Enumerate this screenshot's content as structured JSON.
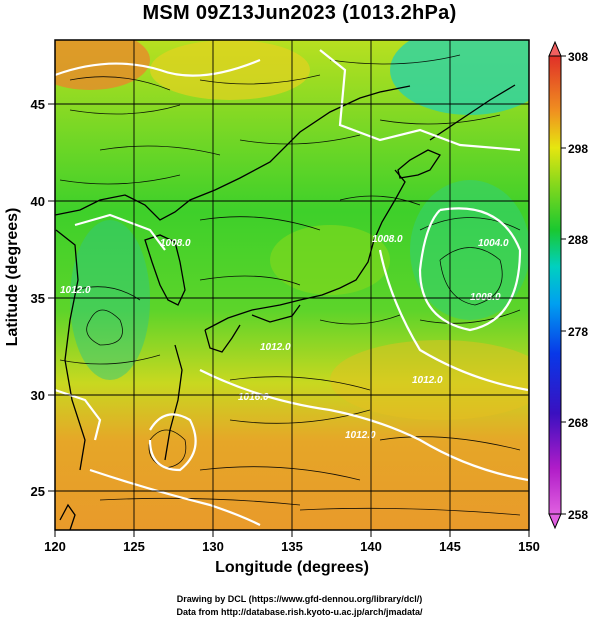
{
  "title": "MSM 09Z13Jun2023 (1013.2hPa)",
  "xaxis": {
    "label": "Longitude (degrees)",
    "ticks": [
      "120",
      "125",
      "130",
      "135",
      "140",
      "145",
      "150"
    ]
  },
  "yaxis": {
    "label": "Latitude  (degrees)",
    "ticks": [
      "25",
      "30",
      "35",
      "40",
      "45"
    ]
  },
  "colorbar": {
    "ticks": [
      "308",
      "298",
      "288",
      "278",
      "268",
      "258"
    ]
  },
  "contours": {
    "labels": [
      "1008.0",
      "1008.0",
      "1012.0",
      "1012.0",
      "1016.0",
      "1012.0",
      "1004.0",
      "1008.0",
      "1012.0"
    ]
  },
  "credits": [
    "Drawing by DCL (https://www.gfd-dennou.org/library/dcl/)",
    "Data from http://database.rish.kyoto-u.ac.jp/arch/jmadata/"
  ],
  "chart_data": {
    "type": "heatmap",
    "title": "MSM 09Z13Jun2023 (1013.2hPa)",
    "xlabel": "Longitude (degrees)",
    "ylabel": "Latitude  (degrees)",
    "xlim": [
      120,
      150
    ],
    "ylim": [
      22.5,
      48
    ],
    "x_ticks": [
      120,
      125,
      130,
      135,
      140,
      145,
      150
    ],
    "y_ticks": [
      25,
      30,
      35,
      40,
      45
    ],
    "color_range": [
      258,
      308
    ],
    "colorbar_ticks": [
      308,
      298,
      288,
      278,
      268,
      258
    ],
    "colormap": [
      "#e0a0d8",
      "#b01cc8",
      "#3a10c0",
      "#0838e8",
      "#00a0f0",
      "#00d0c0",
      "#1ac830",
      "#86d81c",
      "#e6e610",
      "#f09020",
      "#e03028",
      "#f06060"
    ],
    "grid": true,
    "overlays": [
      "wind streamlines",
      "white isobars",
      "coastlines"
    ],
    "low_center_near": [
      147,
      35.5
    ]
  }
}
